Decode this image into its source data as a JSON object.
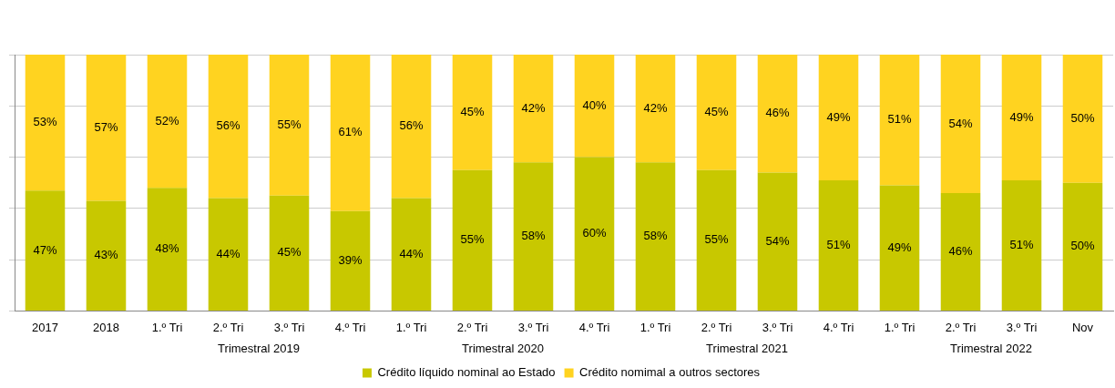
{
  "chart_data": {
    "type": "bar",
    "stacked": true,
    "categories": [
      "2017",
      "2018",
      "1.º Tri",
      "2.º Tri",
      "3.º Tri",
      "4.º Tri",
      "1.º Tri",
      "2.º Tri",
      "3.º Tri",
      "4.º Tri",
      "1.º Tri",
      "2.º Tri",
      "3.º Tri",
      "4.º Tri",
      "1.º Tri",
      "2.º Tri",
      "3.º Tri",
      "Nov"
    ],
    "series": [
      {
        "name": "Crédito líquido nominal ao Estado",
        "color": "#c8c800",
        "values": [
          47,
          43,
          48,
          44,
          45,
          39,
          44,
          55,
          58,
          60,
          58,
          55,
          54,
          51,
          49,
          46,
          51,
          50
        ],
        "value_labels": [
          "47%",
          "43%",
          "48%",
          "44%",
          "45%",
          "39%",
          "44%",
          "55%",
          "58%",
          "60%",
          "58%",
          "55%",
          "54%",
          "51%",
          "49%",
          "46%",
          "51%",
          "50%"
        ]
      },
      {
        "name": "Crédito nomimal a outros sectores",
        "color": "#ffd320",
        "values": [
          53,
          57,
          52,
          56,
          55,
          61,
          56,
          45,
          42,
          40,
          42,
          45,
          46,
          49,
          51,
          54,
          49,
          50
        ],
        "value_labels": [
          "53%",
          "57%",
          "52%",
          "56%",
          "55%",
          "61%",
          "56%",
          "45%",
          "42%",
          "40%",
          "42%",
          "45%",
          "46%",
          "49%",
          "51%",
          "54%",
          "49%",
          "50%"
        ]
      }
    ],
    "annotations": [
      "Trimestral 2019",
      "Trimestral 2020",
      "Trimestral 2021",
      "Trimestral 2022"
    ],
    "tick_labels": "x",
    "grid": "y",
    "legend": "bottom"
  }
}
